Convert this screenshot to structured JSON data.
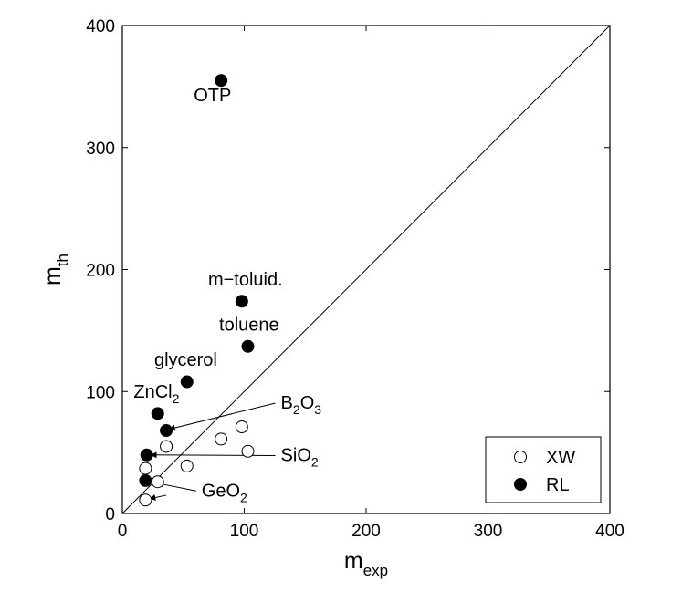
{
  "chart_data": {
    "type": "scatter",
    "xlabel": "m",
    "xlabel_sub": "exp",
    "ylabel": "m",
    "ylabel_sub": "th",
    "xlim": [
      0,
      400
    ],
    "ylim": [
      0,
      400
    ],
    "xticks": [
      "0",
      "100",
      "200",
      "300",
      "400"
    ],
    "yticks": [
      "0",
      "100",
      "200",
      "300",
      "400"
    ],
    "grid": false,
    "legend_position": "bottom-right",
    "reference_line": "y = x",
    "series": [
      {
        "name": "XW",
        "marker": "open-circle",
        "color": "#000000",
        "points": [
          {
            "x": 19,
            "y": 11
          },
          {
            "x": 19,
            "y": 37
          },
          {
            "x": 29,
            "y": 26
          },
          {
            "x": 36,
            "y": 55
          },
          {
            "x": 53,
            "y": 39
          },
          {
            "x": 81,
            "y": 61
          },
          {
            "x": 98,
            "y": 71
          },
          {
            "x": 103,
            "y": 51
          }
        ]
      },
      {
        "name": "RL",
        "marker": "filled-circle",
        "color": "#000000",
        "points": [
          {
            "x": 19,
            "y": 27
          },
          {
            "x": 20,
            "y": 48
          },
          {
            "x": 29,
            "y": 82
          },
          {
            "x": 36,
            "y": 68
          },
          {
            "x": 53,
            "y": 108
          },
          {
            "x": 81,
            "y": 355
          },
          {
            "x": 98,
            "y": 174
          },
          {
            "x": 103,
            "y": 137
          }
        ]
      }
    ],
    "annotations": [
      {
        "id": "otp",
        "base": "OTP",
        "sub": "",
        "tail": "",
        "x": 74,
        "y": 338
      },
      {
        "id": "m-toluid",
        "base": "m−toluid.",
        "sub": "",
        "tail": "",
        "x": 101,
        "y": 187
      },
      {
        "id": "toluene",
        "base": "toluene",
        "sub": "",
        "tail": "",
        "x": 104,
        "y": 150
      },
      {
        "id": "glycerol",
        "base": "glycerol",
        "sub": "",
        "tail": "",
        "x": 52,
        "y": 121
      },
      {
        "id": "zncl2",
        "base": "ZnCl",
        "sub": "2",
        "tail": "",
        "x": 28,
        "y": 95
      },
      {
        "id": "b2o3",
        "base": "B",
        "sub": "2",
        "tail": "O",
        "sub2": "3",
        "x": 130,
        "y": 86,
        "arrow_to": {
          "x": 38,
          "y": 69
        }
      },
      {
        "id": "sio2",
        "base": "SiO",
        "sub": "2",
        "tail": "",
        "x": 130,
        "y": 43,
        "arrow_to": {
          "x": 23,
          "y": 48
        }
      },
      {
        "id": "geo2",
        "base": "GeO",
        "sub": "2",
        "tail": "",
        "x": 65,
        "y": 14,
        "arrow_to": {
          "x": 28,
          "y": 25
        }
      },
      {
        "id": "geo2-b",
        "base": "",
        "sub": "",
        "tail": "",
        "x": 36,
        "y": 15,
        "arrow_to": {
          "x": 22,
          "y": 12
        }
      }
    ]
  }
}
